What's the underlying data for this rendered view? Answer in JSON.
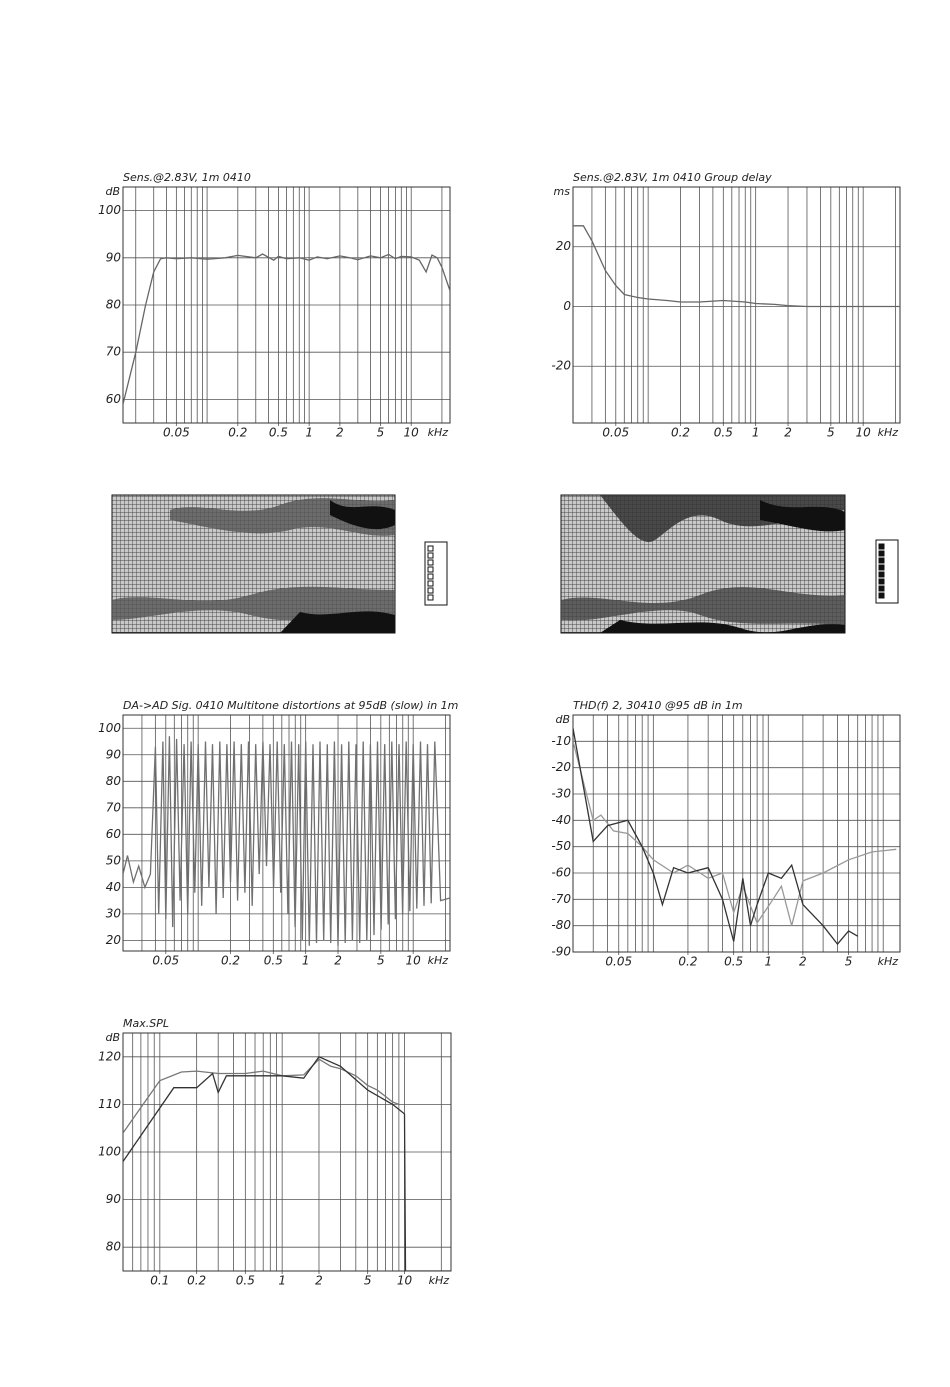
{
  "chart_data": [
    {
      "type": "line",
      "title": "Sens.@2.83V, 1m 0410",
      "y_unit": "dB",
      "x_unit": "kHz",
      "log_x": true,
      "xlim": [
        0.015,
        24
      ],
      "ylim": [
        55,
        105
      ],
      "xticks": [
        0.05,
        0.2,
        0.5,
        1,
        2,
        5,
        10
      ],
      "yticks": [
        60,
        70,
        80,
        90,
        100
      ],
      "xgrid": [
        0.02,
        0.03,
        0.04,
        0.05,
        0.06,
        0.07,
        0.08,
        0.09,
        0.1,
        0.2,
        0.3,
        0.4,
        0.5,
        0.6,
        0.7,
        0.8,
        0.9,
        1,
        2,
        3,
        4,
        5,
        6,
        7,
        8,
        9,
        10,
        20
      ],
      "series": [
        {
          "color": "#666666",
          "x": [
            0.015,
            0.02,
            0.025,
            0.03,
            0.035,
            0.04,
            0.05,
            0.07,
            0.1,
            0.15,
            0.2,
            0.3,
            0.35,
            0.45,
            0.5,
            0.6,
            0.8,
            1,
            1.2,
            1.5,
            2,
            2.5,
            3,
            4,
            5,
            6,
            7,
            8,
            10,
            12,
            14,
            16,
            18,
            20,
            24
          ],
          "values": [
            59,
            70,
            80,
            87,
            89.8,
            90,
            89.8,
            90,
            89.7,
            90,
            90.5,
            90,
            90.8,
            89.5,
            90.3,
            89.8,
            90,
            89.5,
            90.2,
            89.8,
            90.4,
            90,
            89.6,
            90.4,
            90,
            90.7,
            89.8,
            90.3,
            90.2,
            89.5,
            87,
            90.6,
            90,
            88,
            83
          ]
        }
      ]
    },
    {
      "type": "line",
      "title": "Sens.@2.83V, 1m 0410 Group delay",
      "y_unit": "ms",
      "x_unit": "kHz",
      "log_x": true,
      "xlim": [
        0.02,
        22
      ],
      "ylim": [
        -39,
        40
      ],
      "xticks": [
        0.05,
        0.2,
        0.5,
        1,
        2,
        5,
        10
      ],
      "yticks": [
        -20,
        0,
        20
      ],
      "xgrid": [
        0.03,
        0.04,
        0.05,
        0.06,
        0.07,
        0.08,
        0.09,
        0.1,
        0.2,
        0.3,
        0.4,
        0.5,
        0.6,
        0.7,
        0.8,
        0.9,
        1,
        2,
        3,
        4,
        5,
        6,
        7,
        8,
        9,
        10,
        20
      ],
      "series": [
        {
          "color": "#666666",
          "x": [
            0.02,
            0.025,
            0.03,
            0.04,
            0.05,
            0.06,
            0.08,
            0.1,
            0.15,
            0.2,
            0.3,
            0.5,
            0.8,
            1,
            1.5,
            2,
            3,
            5,
            10,
            22
          ],
          "values": [
            27,
            27,
            22,
            12,
            7,
            4,
            3,
            2.5,
            2,
            1.5,
            1.5,
            2,
            1.5,
            1,
            0.7,
            0.3,
            0,
            0,
            0,
            0
          ]
        }
      ]
    },
    {
      "type": "line",
      "title": "DA->AD Sig.  0410 Multitone distortions at 95dB (slow) in 1m",
      "x_unit": "kHz",
      "log_x": true,
      "xlim": [
        0.02,
        22
      ],
      "ylim": [
        16,
        105
      ],
      "xticks": [
        0.05,
        0.2,
        0.5,
        1,
        2,
        5,
        10
      ],
      "yticks": [
        20,
        30,
        40,
        50,
        60,
        70,
        80,
        90,
        100
      ],
      "xgrid": [
        0.03,
        0.04,
        0.05,
        0.06,
        0.07,
        0.08,
        0.09,
        0.1,
        0.2,
        0.3,
        0.4,
        0.5,
        0.6,
        0.7,
        0.8,
        0.9,
        1,
        2,
        3,
        4,
        5,
        6,
        7,
        8,
        9,
        10,
        20
      ],
      "series": [
        {
          "color": "#707070",
          "x": [
            0.02,
            0.022,
            0.025,
            0.028,
            0.032,
            0.036,
            0.04,
            0.043,
            0.047,
            0.05,
            0.054,
            0.058,
            0.063,
            0.068,
            0.074,
            0.08,
            0.086,
            0.093,
            0.1,
            0.108,
            0.117,
            0.126,
            0.136,
            0.147,
            0.159,
            0.171,
            0.185,
            0.2,
            0.216,
            0.233,
            0.252,
            0.272,
            0.294,
            0.318,
            0.343,
            0.37,
            0.4,
            0.432,
            0.466,
            0.503,
            0.543,
            0.586,
            0.633,
            0.683,
            0.738,
            0.797,
            0.861,
            0.93,
            1.0,
            1.08,
            1.17,
            1.26,
            1.36,
            1.47,
            1.59,
            1.71,
            1.85,
            2.0,
            2.16,
            2.33,
            2.52,
            2.72,
            2.94,
            3.18,
            3.43,
            3.7,
            4.0,
            4.32,
            4.66,
            5.03,
            5.43,
            5.86,
            6.33,
            6.83,
            7.38,
            7.97,
            8.61,
            9.3,
            10,
            10.8,
            11.7,
            12.6,
            13.6,
            14.7,
            15.9,
            18,
            22
          ],
          "values": [
            45,
            52,
            42,
            48,
            40,
            45,
            93,
            30,
            95,
            28,
            97,
            25,
            96,
            35,
            94,
            30,
            95,
            38,
            94,
            33,
            95,
            40,
            94,
            30,
            95,
            36,
            94,
            42,
            95,
            35,
            94,
            38,
            95,
            33,
            94,
            45,
            95,
            48,
            94,
            40,
            95,
            38,
            94,
            30,
            95,
            25,
            94,
            20,
            95,
            18,
            94,
            19,
            95,
            20,
            94,
            19,
            95,
            18,
            94,
            19,
            95,
            20,
            94,
            19,
            95,
            20,
            94,
            22,
            95,
            24,
            94,
            26,
            95,
            28,
            94,
            30,
            95,
            31,
            94,
            32,
            95,
            33,
            94,
            34,
            95,
            35,
            36
          ]
        }
      ]
    },
    {
      "type": "line",
      "title": "THD(f) 2, 30410 @95 dB in 1m",
      "y_unit": "dB",
      "x_unit": "kHz",
      "log_x": true,
      "xlim": [
        0.02,
        14
      ],
      "ylim": [
        -90,
        0
      ],
      "xticks": [
        0.05,
        0.2,
        0.5,
        1,
        2,
        5
      ],
      "yticks": [
        -90,
        -80,
        -70,
        -60,
        -50,
        -40,
        -30,
        -20,
        -10
      ],
      "xgrid": [
        0.03,
        0.04,
        0.05,
        0.06,
        0.07,
        0.08,
        0.09,
        0.1,
        0.2,
        0.3,
        0.4,
        0.5,
        0.6,
        0.7,
        0.8,
        0.9,
        1,
        2,
        3,
        4,
        5,
        6,
        7,
        8,
        9,
        10
      ],
      "series": [
        {
          "color": "#999999",
          "x": [
            0.02,
            0.03,
            0.035,
            0.045,
            0.06,
            0.08,
            0.1,
            0.15,
            0.2,
            0.3,
            0.4,
            0.5,
            0.6,
            0.8,
            1.1,
            1.3,
            1.6,
            2,
            3,
            5,
            8,
            13
          ],
          "values": [
            -10,
            -40,
            -38,
            -44,
            -45,
            -50,
            -55,
            -60,
            -57,
            -62,
            -60,
            -75,
            -65,
            -79,
            -70,
            -65,
            -80,
            -63,
            -60,
            -55,
            -52,
            -51
          ]
        },
        {
          "color": "#333333",
          "x": [
            0.02,
            0.03,
            0.04,
            0.06,
            0.08,
            0.1,
            0.12,
            0.15,
            0.2,
            0.3,
            0.4,
            0.5,
            0.6,
            0.7,
            0.8,
            1,
            1.3,
            1.6,
            2,
            3,
            4,
            5,
            6
          ],
          "values": [
            -5,
            -48,
            -42,
            -40,
            -50,
            -60,
            -72,
            -58,
            -60,
            -58,
            -70,
            -86,
            -62,
            -80,
            -72,
            -60,
            -62,
            -57,
            -72,
            -80,
            -87,
            -82,
            -84
          ]
        }
      ]
    },
    {
      "type": "line",
      "title": "Max.SPL",
      "y_unit": "dB",
      "x_unit": "kHz",
      "log_x": true,
      "xlim": [
        0.05,
        24
      ],
      "ylim": [
        75,
        125
      ],
      "xticks": [
        0.1,
        0.2,
        0.5,
        1,
        2,
        5,
        10
      ],
      "yticks": [
        80,
        90,
        100,
        110,
        120
      ],
      "xgrid": [
        0.06,
        0.07,
        0.08,
        0.09,
        0.1,
        0.2,
        0.3,
        0.4,
        0.5,
        0.6,
        0.7,
        0.8,
        0.9,
        1,
        2,
        3,
        4,
        5,
        6,
        7,
        8,
        9,
        10,
        20
      ],
      "series": [
        {
          "color": "#777777",
          "x": [
            0.05,
            0.1,
            0.15,
            0.2,
            0.3,
            0.5,
            0.7,
            1,
            1.5,
            2,
            2.5,
            3,
            4,
            5,
            6,
            8,
            9
          ],
          "values": [
            104,
            115,
            116.8,
            117,
            116.5,
            116.5,
            117,
            116,
            116.2,
            119.5,
            118,
            117.5,
            116,
            114,
            113,
            110.5,
            110
          ]
        },
        {
          "color": "#333333",
          "x": [
            0.05,
            0.13,
            0.2,
            0.27,
            0.3,
            0.35,
            0.6,
            1,
            1.5,
            2,
            3,
            5,
            8,
            10,
            10.2,
            24
          ],
          "values": [
            98,
            113.5,
            113.5,
            116.5,
            112.5,
            116,
            116,
            116,
            115.5,
            120,
            118,
            113,
            110,
            108,
            75,
            75
          ]
        }
      ]
    }
  ]
}
